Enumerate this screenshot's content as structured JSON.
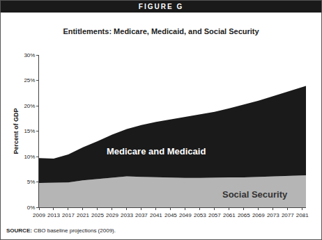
{
  "chart_data": {
    "type": "area",
    "header": "FIGURE G",
    "title": "Entitlements: Medicare, Medicaid, and Social Security",
    "y_label": "Percent of GDP",
    "source_label": "SOURCE:",
    "source": "CBO baseline projections (2009).",
    "stacked": true,
    "grid": false,
    "x": [
      2009,
      2013,
      2017,
      2021,
      2025,
      2029,
      2033,
      2037,
      2041,
      2045,
      2049,
      2053,
      2057,
      2061,
      2065,
      2069,
      2073,
      2077,
      2081,
      2082
    ],
    "series": [
      {
        "name": "Social Security",
        "color": "#b5b5b5",
        "values": [
          4.8,
          4.8,
          4.9,
          5.3,
          5.6,
          5.9,
          6.1,
          6.0,
          5.9,
          5.8,
          5.8,
          5.8,
          5.9,
          5.9,
          5.9,
          6.0,
          6.0,
          6.1,
          6.2,
          6.3
        ]
      },
      {
        "name": "Medicare and Medicaid",
        "color": "#1a1a1a",
        "values": [
          4.9,
          4.8,
          5.5,
          6.5,
          7.4,
          8.4,
          9.3,
          10.2,
          10.9,
          11.5,
          11.9,
          12.4,
          12.9,
          13.6,
          14.3,
          15.0,
          15.9,
          16.7,
          17.4,
          17.6
        ]
      }
    ],
    "annotations": [
      {
        "text": "Medicare and Medicaid",
        "x": 2041,
        "y": 11,
        "color": "#ffffff"
      },
      {
        "text": "Social Security",
        "x": 2068,
        "y": 2.5,
        "color": "#333333"
      }
    ],
    "xlim": [
      2009,
      2082
    ],
    "xticks": [
      2009,
      2013,
      2017,
      2021,
      2025,
      2029,
      2033,
      2037,
      2041,
      2045,
      2049,
      2053,
      2057,
      2061,
      2065,
      2069,
      2073,
      2077,
      2081
    ],
    "ylim": [
      0,
      30
    ],
    "yticks": [
      {
        "value": 0,
        "label": "0%"
      },
      {
        "value": 5,
        "label": "5%"
      },
      {
        "value": 10,
        "label": "10%"
      },
      {
        "value": 15,
        "label": "15%"
      },
      {
        "value": 20,
        "label": "20%"
      },
      {
        "value": 25,
        "label": "25%"
      },
      {
        "value": 30,
        "label": "30%"
      }
    ]
  }
}
